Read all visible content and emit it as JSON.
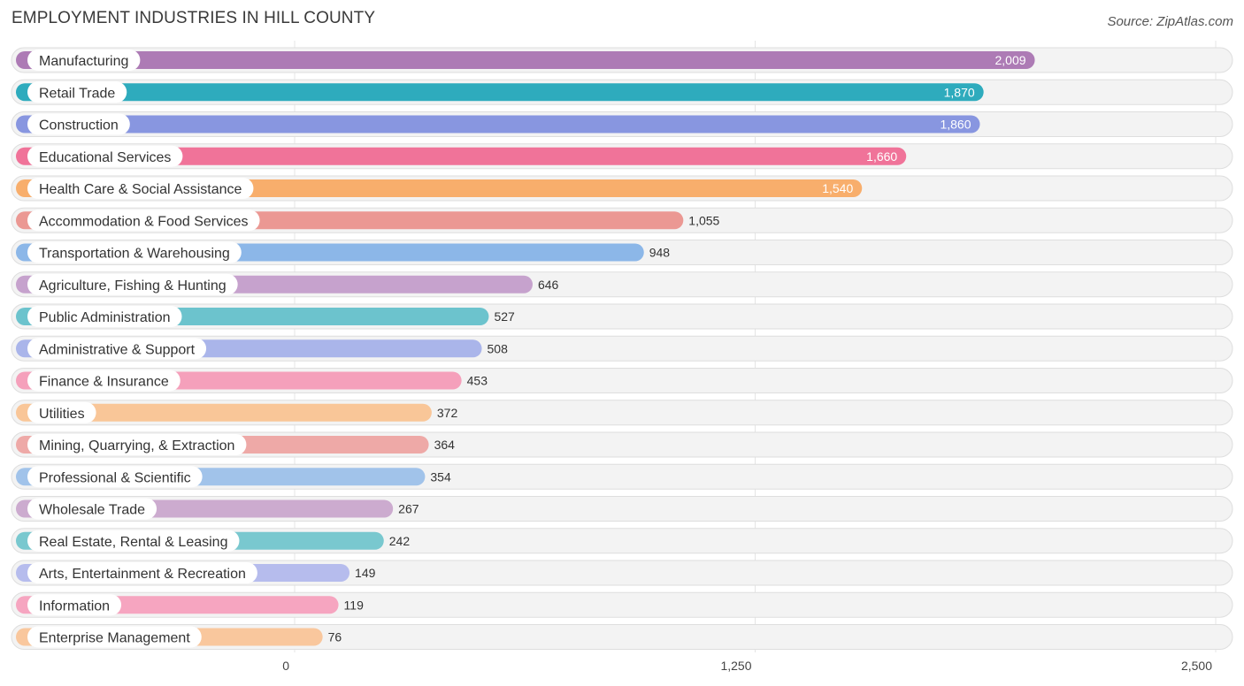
{
  "chart_data": {
    "type": "bar",
    "orientation": "horizontal",
    "title": "EMPLOYMENT INDUSTRIES IN HILL COUNTY",
    "source": "Source: ZipAtlas.com",
    "xlim": [
      0,
      2500
    ],
    "ticks": [
      {
        "value": 0,
        "label": "0"
      },
      {
        "value": 1250,
        "label": "1,250"
      },
      {
        "value": 2500,
        "label": "2,500"
      }
    ],
    "categories": [
      "Manufacturing",
      "Retail Trade",
      "Construction",
      "Educational Services",
      "Health Care & Social Assistance",
      "Accommodation & Food Services",
      "Transportation & Warehousing",
      "Agriculture, Fishing & Hunting",
      "Public Administration",
      "Administrative & Support",
      "Finance & Insurance",
      "Utilities",
      "Mining, Quarrying, & Extraction",
      "Professional & Scientific",
      "Wholesale Trade",
      "Real Estate, Rental & Leasing",
      "Arts, Entertainment & Recreation",
      "Information",
      "Enterprise Management"
    ],
    "values": [
      2009,
      1870,
      1860,
      1660,
      1540,
      1055,
      948,
      646,
      527,
      508,
      453,
      372,
      364,
      354,
      267,
      242,
      149,
      119,
      76
    ],
    "value_labels": [
      "2,009",
      "1,870",
      "1,860",
      "1,660",
      "1,540",
      "1,055",
      "948",
      "646",
      "527",
      "508",
      "453",
      "372",
      "364",
      "354",
      "267",
      "242",
      "149",
      "119",
      "76"
    ],
    "colors": [
      "#ad7bb5",
      "#2eabbd",
      "#8896e0",
      "#f07399",
      "#f8ae6c",
      "#eb9893",
      "#8cb7e8",
      "#c6a2cd",
      "#6cc3cd",
      "#aab5ea",
      "#f5a0bb",
      "#f9c698",
      "#eea9a7",
      "#a1c3ea",
      "#ccabcf",
      "#79c8cf",
      "#b6bced",
      "#f6a5c0",
      "#f9c79d"
    ]
  }
}
